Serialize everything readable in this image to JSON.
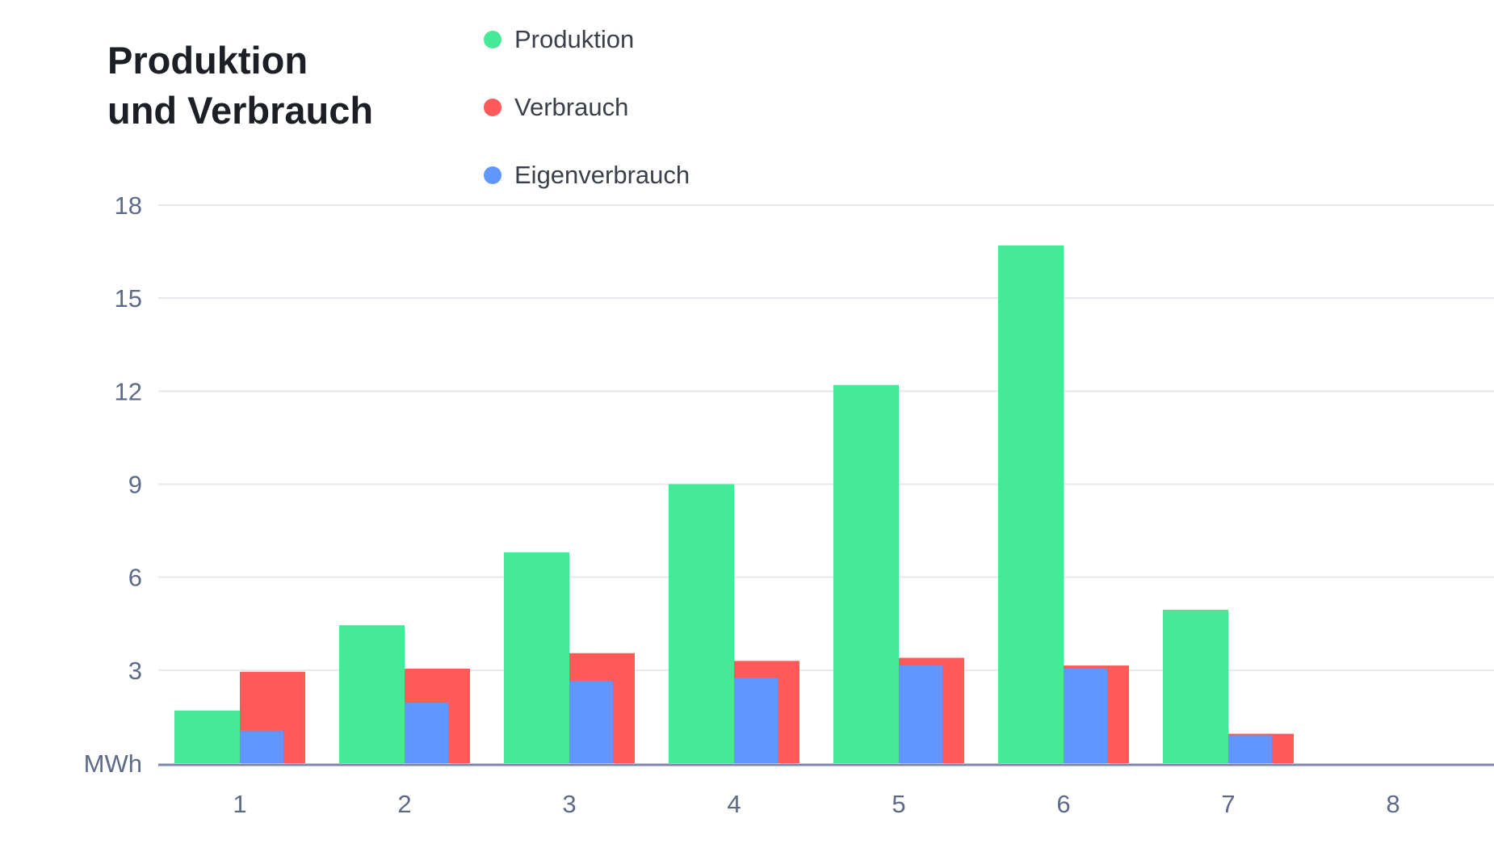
{
  "chart_data": {
    "type": "bar",
    "title_lines": [
      "Produktion",
      "und Verbrauch"
    ],
    "ylabel": "MWh",
    "xlabel": "",
    "categories": [
      "1",
      "2",
      "3",
      "4",
      "5",
      "6",
      "7",
      "8"
    ],
    "ylim": [
      0,
      18
    ],
    "yticks": [
      3,
      6,
      9,
      12,
      15,
      18
    ],
    "grid": true,
    "legend_position": "top",
    "series": [
      {
        "name": "Produktion",
        "color": "#46EA96",
        "values": [
          1.7,
          4.45,
          6.8,
          9.0,
          12.2,
          16.7,
          4.95,
          null
        ]
      },
      {
        "name": "Verbrauch",
        "color": "#FF5A5A",
        "values": [
          2.95,
          3.05,
          3.55,
          3.3,
          3.4,
          3.15,
          0.95,
          null
        ]
      },
      {
        "name": "Eigenverbrauch",
        "color": "#6196FF",
        "values": [
          1.05,
          1.95,
          2.65,
          2.75,
          3.15,
          3.05,
          0.9,
          null
        ]
      }
    ]
  }
}
